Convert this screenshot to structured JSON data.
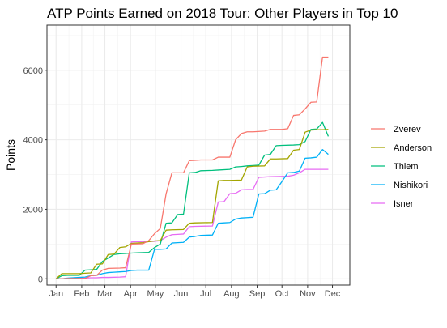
{
  "chart_data": {
    "type": "line",
    "title": "ATP Points Earned on 2018 Tour: Other Players in Top 10",
    "xlabel": "",
    "ylabel": "Points",
    "ylim": [
      -180,
      7300
    ],
    "xlim": [
      "2017-12-21",
      "2018-12-22"
    ],
    "grid": true,
    "legend_position": "right",
    "x_ticks": [
      "2018-01-01",
      "2018-02-01",
      "2018-03-01",
      "2018-04-01",
      "2018-05-01",
      "2018-06-01",
      "2018-07-01",
      "2018-08-01",
      "2018-09-01",
      "2018-10-01",
      "2018-11-01",
      "2018-12-01"
    ],
    "x_tick_labels": [
      "Jan",
      "Feb",
      "Mar",
      "Apr",
      "May",
      "Jun",
      "Jul",
      "Aug",
      "Sep",
      "Oct",
      "Nov",
      "Dec"
    ],
    "y_ticks": [
      0,
      2000,
      4000,
      6000
    ],
    "y_tick_labels": [
      "0",
      "2000",
      "4000",
      "6000"
    ],
    "series": [
      {
        "name": "Zverev",
        "color": "#F8766D",
        "points": [
          [
            "2018-01-01",
            0
          ],
          [
            "2018-01-08",
            0
          ],
          [
            "2018-01-15",
            10
          ],
          [
            "2018-01-29",
            10
          ],
          [
            "2018-02-05",
            10
          ],
          [
            "2018-02-12",
            90
          ],
          [
            "2018-02-19",
            100
          ],
          [
            "2018-02-26",
            250
          ],
          [
            "2018-03-05",
            300
          ],
          [
            "2018-03-19",
            310
          ],
          [
            "2018-03-26",
            320
          ],
          [
            "2018-04-02",
            1000
          ],
          [
            "2018-04-16",
            1010
          ],
          [
            "2018-04-23",
            1100
          ],
          [
            "2018-04-30",
            1300
          ],
          [
            "2018-05-07",
            1450
          ],
          [
            "2018-05-14",
            2450
          ],
          [
            "2018-05-21",
            3050
          ],
          [
            "2018-06-04",
            3050
          ],
          [
            "2018-06-11",
            3400
          ],
          [
            "2018-06-18",
            3410
          ],
          [
            "2018-06-25",
            3420
          ],
          [
            "2018-07-09",
            3420
          ],
          [
            "2018-07-16",
            3500
          ],
          [
            "2018-07-30",
            3500
          ],
          [
            "2018-08-06",
            4000
          ],
          [
            "2018-08-13",
            4180
          ],
          [
            "2018-08-20",
            4230
          ],
          [
            "2018-08-27",
            4230
          ],
          [
            "2018-09-10",
            4250
          ],
          [
            "2018-09-17",
            4300
          ],
          [
            "2018-10-01",
            4300
          ],
          [
            "2018-10-08",
            4320
          ],
          [
            "2018-10-15",
            4700
          ],
          [
            "2018-10-22",
            4720
          ],
          [
            "2018-10-29",
            4890
          ],
          [
            "2018-11-05",
            5080
          ],
          [
            "2018-11-12",
            5090
          ],
          [
            "2018-11-19",
            6380
          ],
          [
            "2018-11-26",
            6380
          ]
        ]
      },
      {
        "name": "Anderson",
        "color": "#A3A500",
        "points": [
          [
            "2018-01-01",
            0
          ],
          [
            "2018-01-08",
            150
          ],
          [
            "2018-01-15",
            150
          ],
          [
            "2018-01-29",
            150
          ],
          [
            "2018-02-05",
            160
          ],
          [
            "2018-02-12",
            170
          ],
          [
            "2018-02-19",
            420
          ],
          [
            "2018-02-26",
            430
          ],
          [
            "2018-03-05",
            700
          ],
          [
            "2018-03-12",
            710
          ],
          [
            "2018-03-19",
            900
          ],
          [
            "2018-03-26",
            920
          ],
          [
            "2018-04-02",
            1020
          ],
          [
            "2018-04-09",
            1030
          ],
          [
            "2018-04-16",
            1040
          ],
          [
            "2018-04-23",
            1070
          ],
          [
            "2018-04-30",
            1090
          ],
          [
            "2018-05-07",
            1100
          ],
          [
            "2018-05-14",
            1400
          ],
          [
            "2018-05-21",
            1410
          ],
          [
            "2018-06-04",
            1420
          ],
          [
            "2018-06-11",
            1600
          ],
          [
            "2018-06-18",
            1610
          ],
          [
            "2018-07-09",
            1620
          ],
          [
            "2018-07-16",
            2820
          ],
          [
            "2018-07-23",
            2830
          ],
          [
            "2018-07-30",
            2830
          ],
          [
            "2018-08-13",
            2840
          ],
          [
            "2018-08-20",
            3220
          ],
          [
            "2018-08-27",
            3240
          ],
          [
            "2018-09-10",
            3250
          ],
          [
            "2018-09-17",
            3450
          ],
          [
            "2018-09-24",
            3450
          ],
          [
            "2018-10-08",
            3460
          ],
          [
            "2018-10-15",
            3700
          ],
          [
            "2018-10-22",
            3720
          ],
          [
            "2018-10-29",
            4220
          ],
          [
            "2018-11-05",
            4280
          ],
          [
            "2018-11-12",
            4290
          ],
          [
            "2018-11-19",
            4290
          ],
          [
            "2018-11-26",
            4300
          ]
        ]
      },
      {
        "name": "Thiem",
        "color": "#00BF7D",
        "points": [
          [
            "2018-01-01",
            0
          ],
          [
            "2018-01-08",
            90
          ],
          [
            "2018-01-15",
            100
          ],
          [
            "2018-01-29",
            100
          ],
          [
            "2018-02-05",
            250
          ],
          [
            "2018-02-12",
            260
          ],
          [
            "2018-02-19",
            270
          ],
          [
            "2018-02-26",
            500
          ],
          [
            "2018-03-05",
            600
          ],
          [
            "2018-03-12",
            700
          ],
          [
            "2018-03-19",
            720
          ],
          [
            "2018-03-26",
            730
          ],
          [
            "2018-04-02",
            740
          ],
          [
            "2018-04-09",
            750
          ],
          [
            "2018-04-23",
            760
          ],
          [
            "2018-04-30",
            900
          ],
          [
            "2018-05-07",
            1000
          ],
          [
            "2018-05-14",
            1600
          ],
          [
            "2018-05-21",
            1610
          ],
          [
            "2018-05-28",
            1850
          ],
          [
            "2018-06-04",
            1860
          ],
          [
            "2018-06-11",
            3050
          ],
          [
            "2018-06-18",
            3060
          ],
          [
            "2018-06-25",
            3110
          ],
          [
            "2018-07-09",
            3120
          ],
          [
            "2018-07-16",
            3130
          ],
          [
            "2018-07-30",
            3150
          ],
          [
            "2018-08-06",
            3220
          ],
          [
            "2018-08-13",
            3230
          ],
          [
            "2018-08-20",
            3250
          ],
          [
            "2018-08-27",
            3260
          ],
          [
            "2018-09-03",
            3270
          ],
          [
            "2018-09-10",
            3560
          ],
          [
            "2018-09-17",
            3580
          ],
          [
            "2018-09-24",
            3830
          ],
          [
            "2018-10-01",
            3840
          ],
          [
            "2018-10-15",
            3850
          ],
          [
            "2018-10-22",
            3860
          ],
          [
            "2018-10-29",
            3950
          ],
          [
            "2018-11-05",
            4300
          ],
          [
            "2018-11-12",
            4310
          ],
          [
            "2018-11-19",
            4500
          ],
          [
            "2018-11-26",
            4100
          ]
        ]
      },
      {
        "name": "Nishikori",
        "color": "#00B0F6",
        "points": [
          [
            "2018-01-01",
            0
          ],
          [
            "2018-01-08",
            0
          ],
          [
            "2018-01-15",
            20
          ],
          [
            "2018-01-29",
            40
          ],
          [
            "2018-02-05",
            50
          ],
          [
            "2018-02-12",
            90
          ],
          [
            "2018-02-19",
            100
          ],
          [
            "2018-02-26",
            150
          ],
          [
            "2018-03-05",
            180
          ],
          [
            "2018-03-12",
            190
          ],
          [
            "2018-03-19",
            200
          ],
          [
            "2018-03-26",
            210
          ],
          [
            "2018-04-02",
            240
          ],
          [
            "2018-04-09",
            250
          ],
          [
            "2018-04-23",
            250
          ],
          [
            "2018-04-30",
            850
          ],
          [
            "2018-05-07",
            850
          ],
          [
            "2018-05-14",
            860
          ],
          [
            "2018-05-21",
            1030
          ],
          [
            "2018-05-28",
            1040
          ],
          [
            "2018-06-04",
            1050
          ],
          [
            "2018-06-11",
            1200
          ],
          [
            "2018-06-18",
            1220
          ],
          [
            "2018-06-25",
            1250
          ],
          [
            "2018-07-09",
            1260
          ],
          [
            "2018-07-16",
            1600
          ],
          [
            "2018-07-23",
            1610
          ],
          [
            "2018-07-30",
            1620
          ],
          [
            "2018-08-06",
            1720
          ],
          [
            "2018-08-13",
            1750
          ],
          [
            "2018-08-20",
            1760
          ],
          [
            "2018-08-27",
            1770
          ],
          [
            "2018-09-03",
            2440
          ],
          [
            "2018-09-10",
            2450
          ],
          [
            "2018-09-17",
            2550
          ],
          [
            "2018-09-24",
            2560
          ],
          [
            "2018-10-01",
            2800
          ],
          [
            "2018-10-08",
            3050
          ],
          [
            "2018-10-15",
            3060
          ],
          [
            "2018-10-22",
            3100
          ],
          [
            "2018-10-29",
            3470
          ],
          [
            "2018-11-05",
            3480
          ],
          [
            "2018-11-12",
            3500
          ],
          [
            "2018-11-19",
            3720
          ],
          [
            "2018-11-26",
            3580
          ]
        ]
      },
      {
        "name": "Isner",
        "color": "#E76BF3",
        "points": [
          [
            "2018-01-01",
            0
          ],
          [
            "2018-01-08",
            0
          ],
          [
            "2018-01-15",
            10
          ],
          [
            "2018-01-29",
            20
          ],
          [
            "2018-02-05",
            20
          ],
          [
            "2018-02-12",
            30
          ],
          [
            "2018-02-19",
            30
          ],
          [
            "2018-02-26",
            40
          ],
          [
            "2018-03-05",
            40
          ],
          [
            "2018-03-19",
            50
          ],
          [
            "2018-03-26",
            60
          ],
          [
            "2018-04-02",
            1060
          ],
          [
            "2018-04-09",
            1070
          ],
          [
            "2018-04-16",
            1070
          ],
          [
            "2018-04-30",
            1080
          ],
          [
            "2018-05-07",
            1100
          ],
          [
            "2018-05-14",
            1200
          ],
          [
            "2018-05-21",
            1270
          ],
          [
            "2018-05-28",
            1280
          ],
          [
            "2018-06-04",
            1290
          ],
          [
            "2018-06-11",
            1500
          ],
          [
            "2018-06-18",
            1510
          ],
          [
            "2018-07-09",
            1520
          ],
          [
            "2018-07-16",
            2210
          ],
          [
            "2018-07-23",
            2220
          ],
          [
            "2018-07-30",
            2450
          ],
          [
            "2018-08-06",
            2460
          ],
          [
            "2018-08-13",
            2560
          ],
          [
            "2018-08-20",
            2570
          ],
          [
            "2018-08-27",
            2570
          ],
          [
            "2018-09-03",
            2920
          ],
          [
            "2018-09-10",
            2930
          ],
          [
            "2018-09-17",
            2940
          ],
          [
            "2018-10-08",
            2950
          ],
          [
            "2018-10-15",
            2980
          ],
          [
            "2018-10-22",
            3050
          ],
          [
            "2018-10-29",
            3150
          ],
          [
            "2018-11-05",
            3150
          ],
          [
            "2018-11-26",
            3150
          ]
        ]
      }
    ]
  }
}
